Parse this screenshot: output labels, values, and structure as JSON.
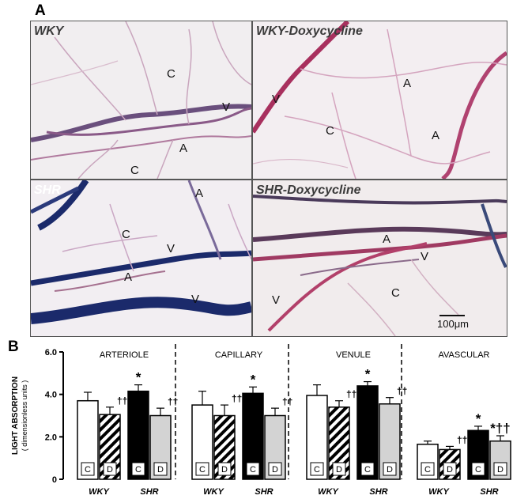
{
  "panel_a_label": "A",
  "panel_b_label": "B",
  "micrographs": [
    {
      "title": "WKY",
      "labels": [
        "C",
        "V",
        "A",
        "C"
      ]
    },
    {
      "title": "WKY-Doxycycline",
      "labels": [
        "A",
        "V",
        "C",
        "A"
      ]
    },
    {
      "title": "SHR",
      "labels": [
        "A",
        "C",
        "V",
        "A",
        "V"
      ]
    },
    {
      "title": "SHR-Doxycycline",
      "labels": [
        "A",
        "V",
        "V",
        "C"
      ]
    }
  ],
  "scale_bar_label": "100μm",
  "colors": {
    "control_wky": "#ffffff",
    "dox_wky": "hatched",
    "control_shr": "#000000",
    "dox_shr": "#d3d3d3",
    "vessel_dark": "#1b2a6b",
    "vessel_pink": "#c0406a"
  },
  "chart_data": {
    "type": "bar",
    "ylabel_line1": "LIGHT ABSORPTION",
    "ylabel_line2": "( dimensionless units )",
    "ylim": [
      0,
      6
    ],
    "yticks": [
      "6.0",
      "4.0",
      "2.0",
      "0"
    ],
    "group_xlabels": [
      "WKY",
      "SHR"
    ],
    "bar_codes": [
      "C",
      "D",
      "C",
      "D"
    ],
    "panels": [
      {
        "title": "ARTERIOLE",
        "values": [
          3.7,
          3.05,
          4.15,
          3.0
        ],
        "errors": [
          0.4,
          0.35,
          0.3,
          0.35
        ],
        "marks": [
          "",
          "††",
          "*",
          "††"
        ]
      },
      {
        "title": "CAPILLARY",
        "values": [
          3.5,
          3.0,
          4.05,
          3.0
        ],
        "errors": [
          0.65,
          0.5,
          0.3,
          0.35
        ],
        "marks": [
          "",
          "††",
          "*",
          "††"
        ]
      },
      {
        "title": "VENULE",
        "values": [
          3.95,
          3.4,
          4.4,
          3.55
        ],
        "errors": [
          0.5,
          0.3,
          0.2,
          0.3
        ],
        "marks": [
          "",
          "††",
          "*",
          "††"
        ]
      },
      {
        "title": "AVASCULAR",
        "values": [
          1.65,
          1.4,
          2.3,
          1.8
        ],
        "errors": [
          0.15,
          0.15,
          0.2,
          0.25
        ],
        "marks": [
          "",
          "††",
          "*",
          "*††"
        ]
      }
    ]
  }
}
